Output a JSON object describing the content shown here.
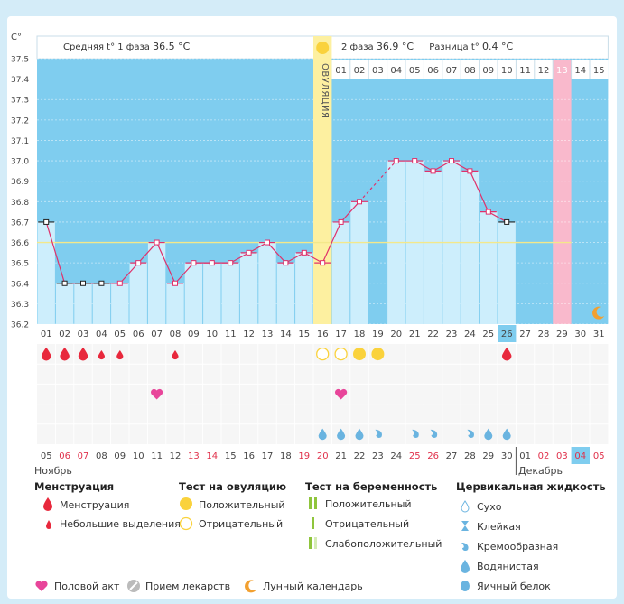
{
  "header": {
    "unit": "C°",
    "phase1_label": "Средняя t° 1 фаза",
    "phase1_value": "36.5 °C",
    "phase2_label": "2 фаза",
    "phase2_value": "36.9 °C",
    "diff_label": "Разница t°",
    "diff_value": "0.4 °C"
  },
  "ovulation_label": "ОВУЛЯЦИЯ",
  "months": {
    "first": "Ноябрь",
    "second": "Декабрь"
  },
  "chart_data": {
    "type": "line",
    "title": "",
    "ylabel": "C°",
    "ylim": [
      36.2,
      37.5
    ],
    "yticks": [
      "37.5",
      "37.4",
      "37.3",
      "37.2",
      "37.1",
      "37.0",
      "36.9",
      "36.8",
      "36.7",
      "36.6",
      "36.5",
      "36.4",
      "36.3",
      "36.2"
    ],
    "coverline": 36.6,
    "cycle_days": [
      "01",
      "02",
      "03",
      "04",
      "05",
      "06",
      "07",
      "08",
      "09",
      "10",
      "11",
      "12",
      "13",
      "14",
      "15",
      "16",
      "17",
      "18",
      "19",
      "20",
      "21",
      "22",
      "23",
      "24",
      "25",
      "26",
      "27",
      "28",
      "29",
      "30",
      "31"
    ],
    "phase2_days": [
      "01",
      "02",
      "03",
      "04",
      "05",
      "06",
      "07",
      "08",
      "09",
      "10",
      "11",
      "12",
      "13",
      "14",
      "15"
    ],
    "dates": [
      "05",
      "06",
      "07",
      "08",
      "09",
      "10",
      "11",
      "12",
      "13",
      "14",
      "15",
      "16",
      "17",
      "18",
      "19",
      "20",
      "21",
      "22",
      "23",
      "24",
      "25",
      "26",
      "27",
      "28",
      "29",
      "30",
      "01",
      "02",
      "03",
      "04",
      "05"
    ],
    "red_dates": [
      1,
      2,
      8,
      9,
      14,
      15,
      20,
      21,
      27,
      28,
      29,
      30
    ],
    "temperatures": [
      36.7,
      36.4,
      36.4,
      36.4,
      36.4,
      36.5,
      36.6,
      36.4,
      36.5,
      36.5,
      36.5,
      36.55,
      36.6,
      36.5,
      36.55,
      36.5,
      36.7,
      36.8,
      null,
      37.0,
      37.0,
      36.95,
      37.0,
      36.95,
      36.75,
      36.7,
      null,
      null,
      null,
      null,
      null
    ],
    "black_markers": [
      0,
      1,
      2,
      3,
      25
    ],
    "dashed_segment": [
      17,
      19
    ],
    "ovulation_day": 16,
    "pink_day": 29,
    "highlight_day": 26,
    "highlight_date": "30"
  },
  "symbols": {
    "menstruation": [
      1,
      2,
      3
    ],
    "spotting": [
      4,
      5,
      8
    ],
    "menstruation_late": [
      26
    ],
    "ovulation_negative": [
      16,
      17
    ],
    "ovulation_positive": [
      18,
      19
    ],
    "intercourse": [
      7,
      17
    ],
    "cervical_watery": [
      16,
      17,
      18
    ],
    "cervical_creamy": [
      19,
      21,
      22,
      24
    ],
    "cervical_watery_late": [
      25,
      26
    ]
  },
  "legend": {
    "col1_title": "Менструация",
    "col1_items": [
      "Менструация",
      "Небольшие выделения"
    ],
    "col2_title": "Тест на овуляцию",
    "col2_items": [
      "Положительный",
      "Отрицательный"
    ],
    "col3_title": "Тест на беременность",
    "col3_items": [
      "Положительный",
      "Отрицательный",
      "Слабоположительный"
    ],
    "col4_title": "Цервикальная жидкость",
    "col4_items": [
      "Сухо",
      "Клейкая",
      "Кремообразная",
      "Водянистая",
      "Яичный белок"
    ],
    "bottom_items": [
      "Половой акт",
      "Прием лекарств",
      "Лунный календарь"
    ]
  },
  "colors": {
    "chart_bg": "#7fcdef",
    "bar": "#cdeefc",
    "line": "#e0306a",
    "ovulation": "#fdf0a0",
    "pink": "#f9b9cc",
    "highlight": "#7fcdef",
    "coverline": "#f4e88a"
  }
}
